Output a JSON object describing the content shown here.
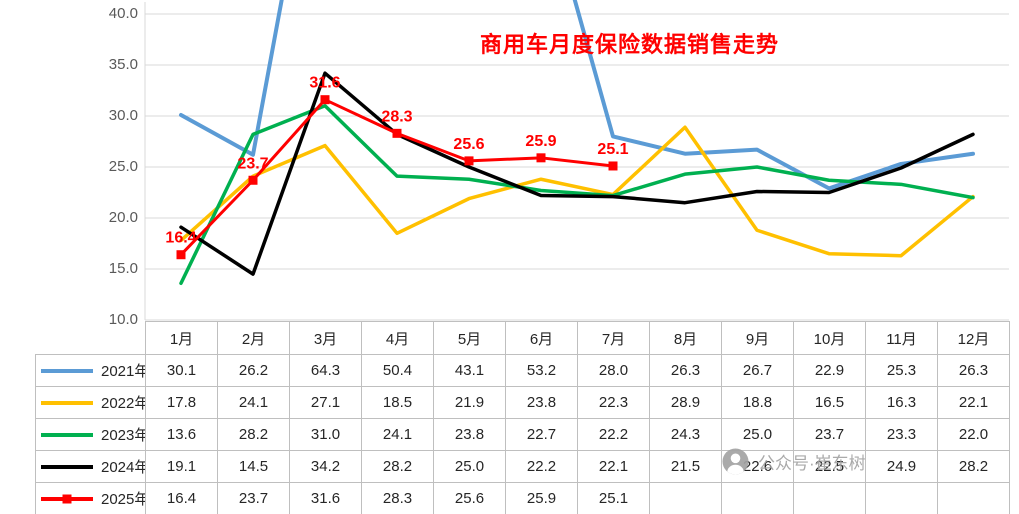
{
  "chart_data": {
    "type": "line",
    "title": "商用车月度保险数据销售走势",
    "title_color": "#FF0000",
    "categories": [
      "1月",
      "2月",
      "3月",
      "4月",
      "5月",
      "6月",
      "7月",
      "8月",
      "9月",
      "10月",
      "11月",
      "12月"
    ],
    "series": [
      {
        "name": "2021年",
        "color": "#5B9BD5",
        "stroke_width": 4,
        "marker": "none",
        "data_labels": false,
        "values": [
          30.1,
          26.2,
          64.3,
          50.4,
          43.1,
          53.2,
          28.0,
          26.3,
          26.7,
          22.9,
          25.3,
          26.3
        ]
      },
      {
        "name": "2022年",
        "color": "#FFC000",
        "stroke_width": 3.5,
        "marker": "none",
        "data_labels": false,
        "values": [
          17.8,
          24.1,
          27.1,
          18.5,
          21.9,
          23.8,
          22.3,
          28.9,
          18.8,
          16.5,
          16.3,
          22.1
        ]
      },
      {
        "name": "2023年",
        "color": "#00B050",
        "stroke_width": 3.5,
        "marker": "none",
        "data_labels": false,
        "values": [
          13.6,
          28.2,
          31.0,
          24.1,
          23.8,
          22.7,
          22.2,
          24.3,
          25.0,
          23.7,
          23.3,
          22.0
        ]
      },
      {
        "name": "2024年",
        "color": "#000000",
        "stroke_width": 3.5,
        "marker": "none",
        "data_labels": false,
        "values": [
          19.1,
          14.5,
          34.2,
          28.2,
          25.0,
          22.2,
          22.1,
          21.5,
          22.6,
          22.5,
          24.9,
          28.2
        ]
      },
      {
        "name": "2025年",
        "color": "#FF0000",
        "stroke_width": 3,
        "marker": "square",
        "data_labels": true,
        "values": [
          16.4,
          23.7,
          31.6,
          28.3,
          25.6,
          25.9,
          25.1,
          null,
          null,
          null,
          null,
          null
        ]
      }
    ],
    "ylim": [
      10,
      40
    ],
    "yticks": [
      40,
      35,
      30,
      25,
      20,
      15,
      10
    ],
    "grid": true,
    "gridline_color": "#D9D9D9",
    "legend_position": "table-left"
  },
  "watermark": {
    "icon": "person-icon",
    "text": "公众号·崔东树"
  }
}
